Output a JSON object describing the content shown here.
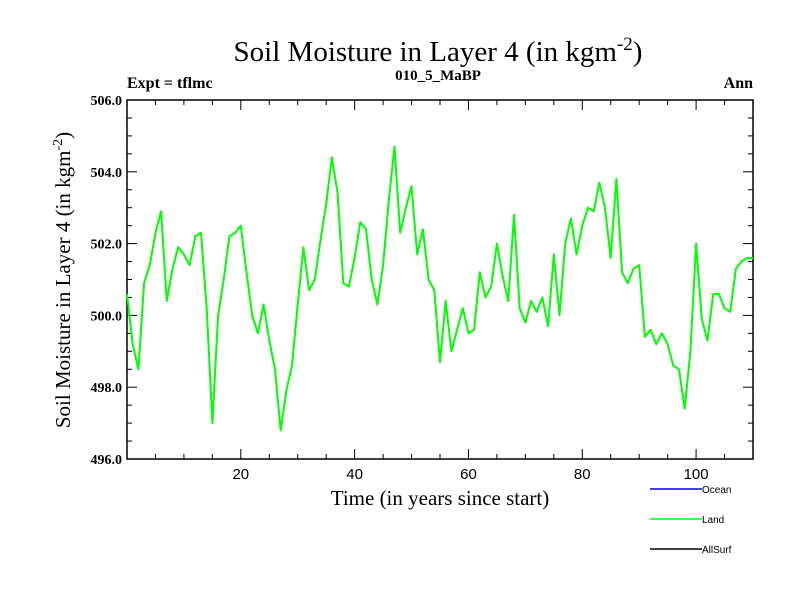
{
  "chart_data": {
    "type": "line",
    "title": "Soil Moisture in Layer 4 (in kgm",
    "title_exponent": "-2",
    "title_close": ")",
    "left_subtitle": "Expt = tflmc",
    "center_subtitle": "010_5_MaBP",
    "right_subtitle": "Ann",
    "xlabel": "Time (in years since start)",
    "ylabel": "Soil Moisture in Layer 4 (in kgm",
    "ylabel_exponent": "-2",
    "ylabel_close": ")",
    "xlim": [
      0,
      110
    ],
    "ylim": [
      496,
      506
    ],
    "xticks": [
      20,
      40,
      60,
      80,
      100
    ],
    "xtick_labels": [
      "20",
      "40",
      "60",
      "80",
      "100"
    ],
    "yticks": [
      496,
      498,
      500,
      502,
      504,
      506
    ],
    "ytick_labels": [
      "496.0",
      "498.0",
      "500.0",
      "502.0",
      "504.0",
      "506.0"
    ],
    "legend": [
      {
        "name": "Ocean",
        "color": "#0000ff"
      },
      {
        "name": "Land",
        "color": "#00ff00"
      },
      {
        "name": "AllSurf",
        "color": "#000000"
      }
    ],
    "series": [
      {
        "name": "Land",
        "color": "#00ff00",
        "x": [
          0,
          1,
          2,
          3,
          4,
          5,
          6,
          7,
          8,
          9,
          10,
          11,
          12,
          13,
          14,
          15,
          16,
          17,
          18,
          19,
          20,
          21,
          22,
          23,
          24,
          25,
          26,
          27,
          28,
          29,
          30,
          31,
          32,
          33,
          34,
          35,
          36,
          37,
          38,
          39,
          40,
          41,
          42,
          43,
          44,
          45,
          46,
          47,
          48,
          49,
          50,
          51,
          52,
          53,
          54,
          55,
          56,
          57,
          58,
          59,
          60,
          61,
          62,
          63,
          64,
          65,
          66,
          67,
          68,
          69,
          70,
          71,
          72,
          73,
          74,
          75,
          76,
          77,
          78,
          79,
          80,
          81,
          82,
          83,
          84,
          85,
          86,
          87,
          88,
          89,
          90,
          91,
          92,
          93,
          94,
          95,
          96,
          97,
          98,
          99,
          100,
          101,
          102,
          103,
          104,
          105,
          106,
          107,
          108,
          109,
          110
        ],
        "y": [
          500.6,
          499.2,
          498.5,
          500.9,
          501.4,
          502.3,
          502.9,
          500.4,
          501.3,
          501.9,
          501.7,
          501.4,
          502.2,
          502.3,
          500.2,
          497.0,
          500.0,
          501.0,
          502.2,
          502.3,
          502.5,
          501.2,
          500.0,
          499.5,
          500.3,
          499.3,
          498.5,
          496.8,
          497.9,
          498.6,
          500.3,
          501.9,
          500.7,
          501.0,
          502.1,
          503.1,
          504.4,
          503.4,
          500.9,
          500.8,
          501.6,
          502.6,
          502.4,
          501.0,
          500.3,
          501.4,
          503.2,
          504.7,
          502.3,
          503.0,
          503.6,
          501.7,
          502.4,
          501.0,
          500.7,
          498.7,
          500.4,
          499.0,
          499.6,
          500.2,
          499.5,
          499.6,
          501.2,
          500.5,
          500.8,
          502.0,
          501.1,
          500.4,
          502.8,
          500.2,
          499.8,
          500.4,
          500.1,
          500.5,
          499.7,
          501.7,
          500.0,
          502.0,
          502.7,
          501.7,
          502.5,
          503.0,
          502.9,
          503.7,
          503.0,
          501.6,
          503.8,
          501.2,
          500.9,
          501.3,
          501.4,
          499.4,
          499.6,
          499.2,
          499.5,
          499.2,
          498.6,
          498.5,
          497.4,
          499.0,
          502.0,
          499.9,
          499.3,
          500.6,
          500.6,
          500.2,
          500.1,
          501.3,
          501.5,
          501.6,
          501.6
        ]
      }
    ]
  }
}
